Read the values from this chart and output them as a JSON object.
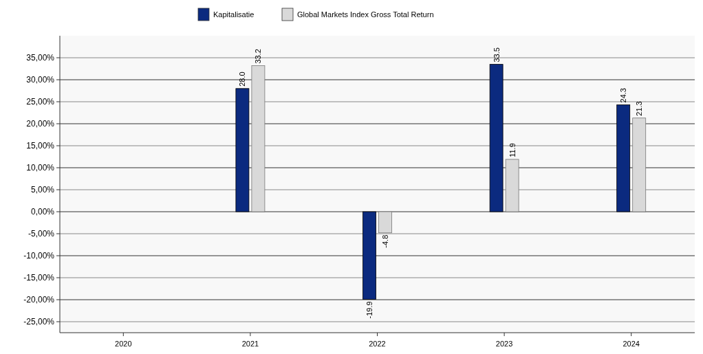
{
  "chart_data": {
    "type": "bar",
    "categories": [
      "2020",
      "2021",
      "2022",
      "2023",
      "2024"
    ],
    "series": [
      {
        "name": "Kapitalisatie",
        "color": "#0b2a7f",
        "values": [
          null,
          28.0,
          -19.9,
          33.5,
          24.3
        ],
        "value_labels": [
          null,
          "28.0",
          "-19.9",
          "33.5",
          "24.3"
        ]
      },
      {
        "name": "Global Markets Index Gross Total Return",
        "color": "#d9d9d9",
        "values": [
          null,
          33.2,
          -4.8,
          11.9,
          21.3
        ],
        "value_labels": [
          null,
          "33.2",
          "-4.8",
          "11.9",
          "21.3"
        ]
      }
    ],
    "ylim": [
      -27.5,
      40
    ],
    "yticks": [
      {
        "value": -25,
        "label": "-25,00%"
      },
      {
        "value": -20,
        "label": "-20,00%"
      },
      {
        "value": -15,
        "label": "-15,00%"
      },
      {
        "value": -10,
        "label": "-10,00%"
      },
      {
        "value": -5,
        "label": "-5,00%"
      },
      {
        "value": 0,
        "label": "0,00%"
      },
      {
        "value": 5,
        "label": "5,00%"
      },
      {
        "value": 10,
        "label": "10,00%"
      },
      {
        "value": 15,
        "label": "15,00%"
      },
      {
        "value": 20,
        "label": "20,00%"
      },
      {
        "value": 25,
        "label": "25,00%"
      },
      {
        "value": 30,
        "label": "30,00%"
      },
      {
        "value": 35,
        "label": "35,00%"
      }
    ],
    "grid": "y",
    "legend": "top"
  }
}
